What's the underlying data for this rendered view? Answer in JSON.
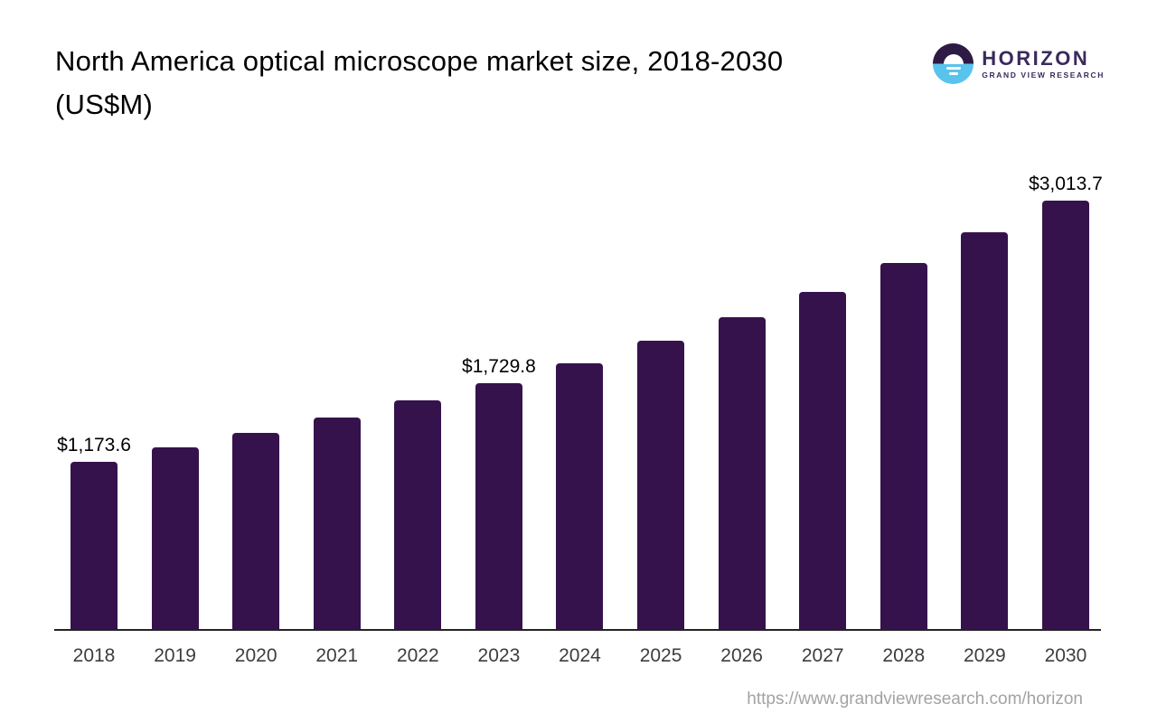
{
  "header": {
    "title_line1": "North America optical microscope market size, 2018-2030",
    "title_line2": "(US$M)",
    "logo": {
      "name": "HORIZON",
      "subtitle": "GRAND VIEW RESEARCH",
      "icon": "horizon-sun-over-water-icon"
    }
  },
  "chart_data": {
    "type": "bar",
    "title": "North America optical microscope market size, 2018-2030 (US$M)",
    "categories": [
      "2018",
      "2019",
      "2020",
      "2021",
      "2022",
      "2023",
      "2024",
      "2025",
      "2026",
      "2027",
      "2028",
      "2029",
      "2030"
    ],
    "values": [
      1173.6,
      1276,
      1377,
      1486,
      1606,
      1729.8,
      1872,
      2031,
      2196,
      2373,
      2577,
      2792,
      3013.7
    ],
    "data_labels": [
      "$1,173.6",
      "",
      "",
      "",
      "",
      "$1,729.8",
      "",
      "",
      "",
      "",
      "",
      "",
      "$3,013.7"
    ],
    "xlabel": "",
    "ylabel": "",
    "ylim": [
      0,
      3100
    ],
    "grid": false,
    "legend": false,
    "bar_color": "#36124d",
    "axis_color": "#232323"
  },
  "footer": {
    "url": "https://www.grandviewresearch.com/horizon"
  },
  "colors": {
    "bar": "#36124d",
    "logo_purple": "#2d1a45",
    "logo_blue": "#58c4ee",
    "logo_text": "#3a2a5c",
    "tick_label": "#3d3d3d",
    "footer_text": "#a3a3a3"
  }
}
